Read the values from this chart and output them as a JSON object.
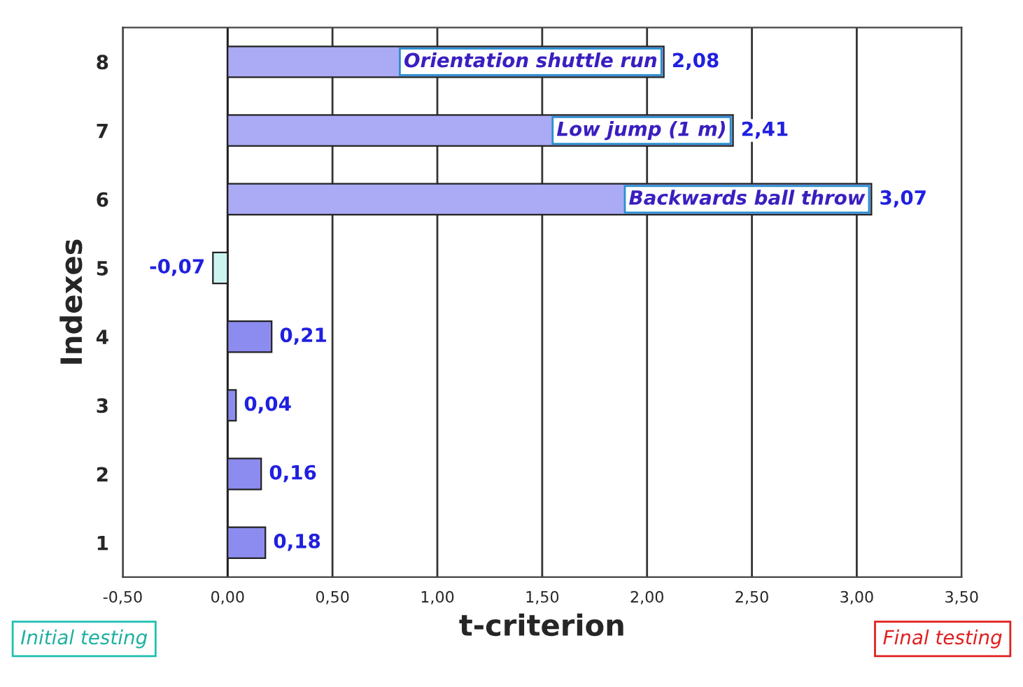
{
  "chart_data": {
    "type": "bar",
    "orientation": "horizontal",
    "xlabel": "t-criterion",
    "ylabel": "Indexes",
    "categories": [
      "8",
      "7",
      "6",
      "5",
      "4",
      "3",
      "2",
      "1"
    ],
    "values": [
      2.08,
      2.41,
      3.07,
      -0.07,
      0.21,
      0.04,
      0.16,
      0.18
    ],
    "colors": [
      "#aaaaf5",
      "#aaaaf5",
      "#aaaaf5",
      "#ccf5f0",
      "#8c8cf0",
      "#8c8cf0",
      "#8c8cf0",
      "#8c8cf0"
    ],
    "value_labels": [
      "2,08",
      "2,41",
      "3,07",
      "-0,07",
      "0,21",
      "0,04",
      "0,16",
      "0,18"
    ],
    "xlim": [
      -0.5,
      3.5
    ],
    "xticks": [
      {
        "value": -0.5,
        "label": "-0,50"
      },
      {
        "value": 0,
        "label": "0,00"
      },
      {
        "value": 0.5,
        "label": "0,50"
      },
      {
        "value": 1,
        "label": "1,00"
      },
      {
        "value": 1.5,
        "label": "1,50"
      },
      {
        "value": 2,
        "label": "2,00"
      },
      {
        "value": 2.5,
        "label": "2,50"
      },
      {
        "value": 3,
        "label": "3,00"
      },
      {
        "value": 3.5,
        "label": "3,50"
      }
    ],
    "grid": "x",
    "annotations": [
      "Orientation shuttle run",
      "Low jump (1 m)",
      "Backwards ball throw",
      "Initial testing",
      "Final testing"
    ]
  }
}
